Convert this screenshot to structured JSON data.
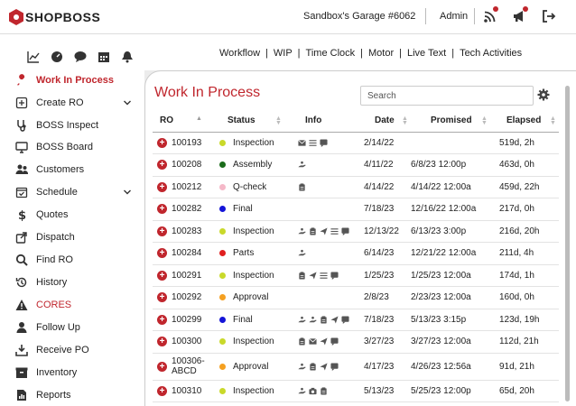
{
  "app": {
    "logo_text": "SHOPBOSS",
    "garage_name": "Sandbox's Garage #6062",
    "user_label": "Admin"
  },
  "subnav": {
    "links": [
      "Workflow",
      "WIP",
      "Time Clock",
      "Motor",
      "Live Text",
      "Tech Activities"
    ]
  },
  "sidebar": {
    "items": [
      {
        "label": "Work In Process",
        "icon": "wrench-icon",
        "active": true
      },
      {
        "label": "Create RO",
        "icon": "plus-square-icon",
        "chevron": true
      },
      {
        "label": "BOSS Inspect",
        "icon": "stethoscope-icon"
      },
      {
        "label": "BOSS Board",
        "icon": "monitor-icon"
      },
      {
        "label": "Customers",
        "icon": "users-icon"
      },
      {
        "label": "Schedule",
        "icon": "calendar-check-icon",
        "chevron": true
      },
      {
        "label": "Quotes",
        "icon": "dollar-icon"
      },
      {
        "label": "Dispatch",
        "icon": "share-icon"
      },
      {
        "label": "Find RO",
        "icon": "search-icon"
      },
      {
        "label": "History",
        "icon": "history-icon"
      },
      {
        "label": "CORES",
        "icon": "warning-icon",
        "emphasis": true
      },
      {
        "label": "Follow Up",
        "icon": "user-icon"
      },
      {
        "label": "Receive PO",
        "icon": "download-icon"
      },
      {
        "label": "Inventory",
        "icon": "box-icon"
      },
      {
        "label": "Reports",
        "icon": "report-icon"
      }
    ]
  },
  "main": {
    "title": "Work In Process",
    "search_placeholder": "Search",
    "columns": [
      "RO",
      "Status",
      "Info",
      "Date",
      "Promised",
      "Elapsed"
    ],
    "rows": [
      {
        "ro": "100193",
        "status": "Inspection",
        "color": "#c9d92a",
        "info": [
          "mail-icon",
          "list-icon",
          "chat-icon"
        ],
        "date": "2/14/22",
        "promised": "",
        "elapsed": "519d, 2h"
      },
      {
        "ro": "100208",
        "status": "Assembly",
        "color": "#1a6b1a",
        "info": [
          "hand-icon"
        ],
        "date": "4/11/22",
        "promised": "6/8/23 12:00p",
        "elapsed": "463d, 0h"
      },
      {
        "ro": "100212",
        "status": "Q-check",
        "color": "#f5b8c8",
        "info": [
          "clipboard-icon"
        ],
        "date": "4/14/22",
        "promised": "4/14/22 12:00a",
        "elapsed": "459d, 22h"
      },
      {
        "ro": "100282",
        "status": "Final",
        "color": "#1414d8",
        "info": [],
        "date": "7/18/23",
        "promised": "12/16/22 12:00a",
        "elapsed": "217d, 0h"
      },
      {
        "ro": "100283",
        "status": "Inspection",
        "color": "#c9d92a",
        "info": [
          "hand-icon",
          "clipboard-icon",
          "send-icon",
          "list-icon",
          "chat-icon"
        ],
        "date": "12/13/22",
        "promised": "6/13/23 3:00p",
        "elapsed": "216d, 20h"
      },
      {
        "ro": "100284",
        "status": "Parts",
        "color": "#e02020",
        "info": [
          "hand-icon"
        ],
        "date": "6/14/23",
        "promised": "12/21/22 12:00a",
        "elapsed": "211d, 4h"
      },
      {
        "ro": "100291",
        "status": "Inspection",
        "color": "#c9d92a",
        "info": [
          "clipboard-icon",
          "send-icon",
          "list-icon",
          "chat-icon"
        ],
        "date": "1/25/23",
        "promised": "1/25/23 12:00a",
        "elapsed": "174d, 1h"
      },
      {
        "ro": "100292",
        "status": "Approval",
        "color": "#f5a020",
        "info": [],
        "date": "2/8/23",
        "promised": "2/23/23 12:00a",
        "elapsed": "160d, 0h"
      },
      {
        "ro": "100299",
        "status": "Final",
        "color": "#1414d8",
        "info": [
          "hand-icon",
          "hand-icon",
          "clipboard-icon",
          "send-icon",
          "chat-icon"
        ],
        "date": "7/18/23",
        "promised": "5/13/23 3:15p",
        "elapsed": "123d, 19h"
      },
      {
        "ro": "100300",
        "status": "Inspection",
        "color": "#c9d92a",
        "info": [
          "clipboard-icon",
          "mail-icon",
          "send-icon",
          "chat-icon"
        ],
        "date": "3/27/23",
        "promised": "3/27/23 12:00a",
        "elapsed": "112d, 21h"
      },
      {
        "ro": "100306-\nABCD",
        "status": "Approval",
        "color": "#f5a020",
        "info": [
          "hand-icon",
          "clipboard-icon",
          "send-icon",
          "chat-icon"
        ],
        "date": "4/17/23",
        "promised": "4/26/23 12:56a",
        "elapsed": "91d, 21h"
      },
      {
        "ro": "100310",
        "status": "Inspection",
        "color": "#c9d92a",
        "info": [
          "hand-icon",
          "camera-icon",
          "clipboard-icon"
        ],
        "date": "5/13/23",
        "promised": "5/25/23 12:00p",
        "elapsed": "65d, 20h"
      }
    ]
  }
}
